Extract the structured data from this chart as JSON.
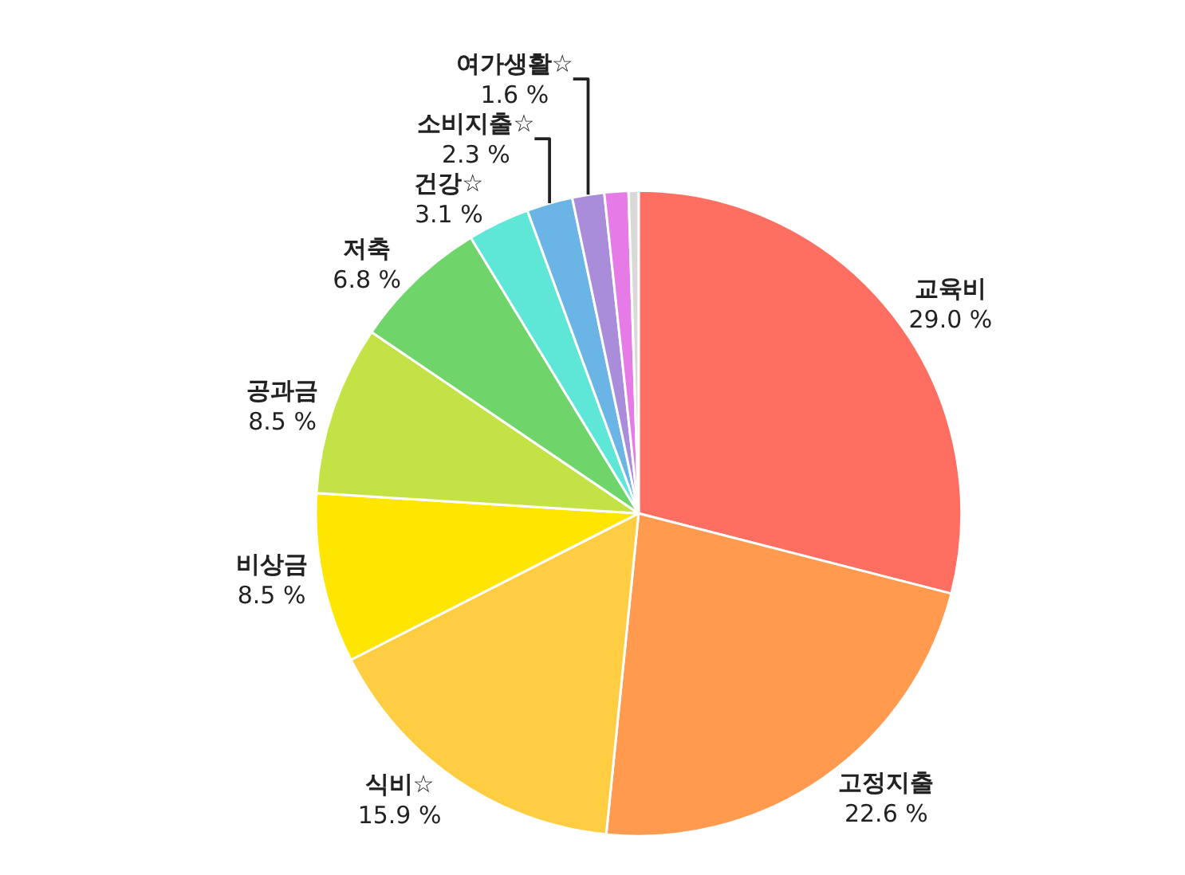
{
  "chart_data": {
    "type": "pie",
    "categories": [
      "교육비",
      "고정지출",
      "식비☆",
      "비상금",
      "공과금",
      "저축",
      "건강☆",
      "소비지출☆",
      "여가생활☆",
      null,
      null
    ],
    "values": [
      29.0,
      22.6,
      15.9,
      8.5,
      8.5,
      6.8,
      3.1,
      2.3,
      1.6,
      1.2,
      0.5
    ],
    "value_labels": [
      "29.0 %",
      "22.6 %",
      "15.9 %",
      "8.5 %",
      "8.5 %",
      "6.8 %",
      "3.1 %",
      "2.3 %",
      "1.6 %",
      null,
      null
    ],
    "colors": [
      "#ff6f61",
      "#ff9a4f",
      "#ffcd42",
      "#ffe600",
      "#c3e245",
      "#6fd46a",
      "#5ee6d6",
      "#6bb5e6",
      "#a98ddb",
      "#e67ae6",
      "#d9d9d9"
    ]
  }
}
